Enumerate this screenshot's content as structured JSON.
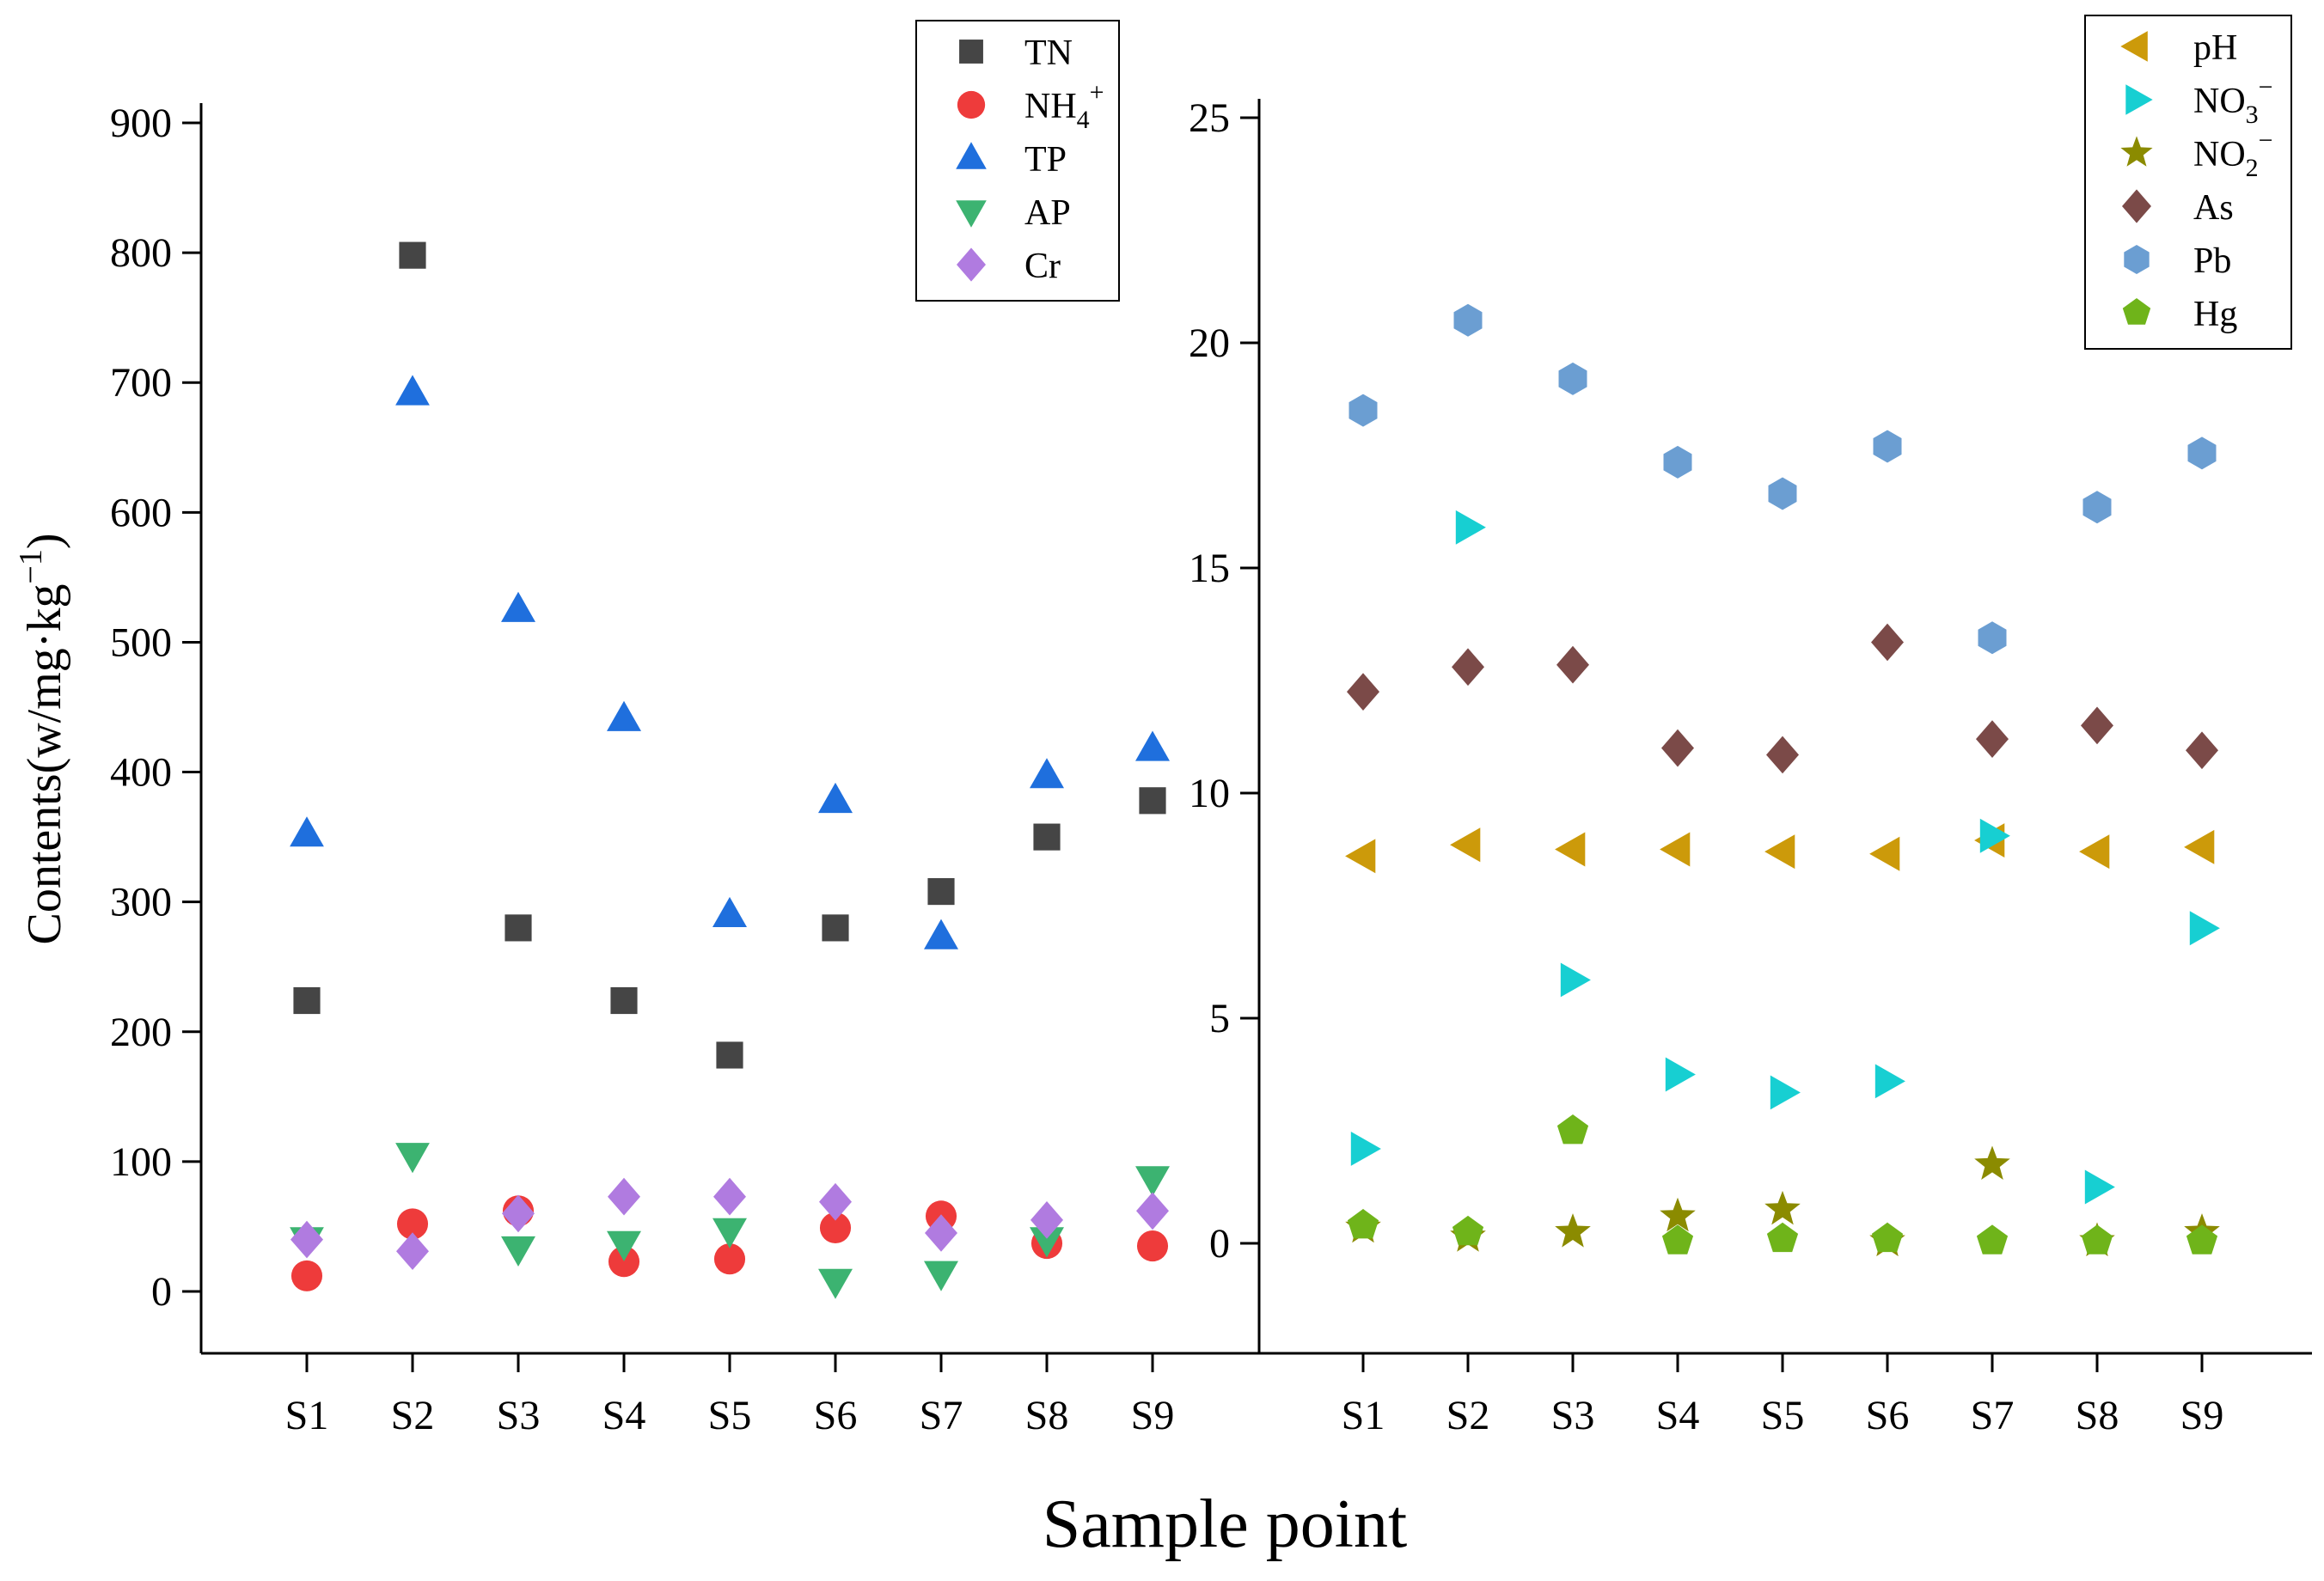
{
  "chart_data": [
    {
      "type": "scatter",
      "title": "",
      "xlabel": "Sample point",
      "ylabel": "Contents(w/mg·kg⁻¹)",
      "ylabel_main": "Contents(w/mg·kg",
      "ylabel_sup": "−1",
      "ylabel_end": ")",
      "categories": [
        "S1",
        "S2",
        "S3",
        "S4",
        "S5",
        "S6",
        "S7",
        "S8",
        "S9"
      ],
      "ylim": [
        -50,
        900
      ],
      "yticks": [
        0,
        100,
        200,
        300,
        400,
        500,
        600,
        700,
        800,
        900
      ],
      "legend_position": "top-right",
      "series": [
        {
          "name": "TN",
          "name_main": "TN",
          "sub": "",
          "sup": "",
          "marker": "square",
          "color": "#454545",
          "values": [
            224,
            798,
            280,
            224,
            182,
            280,
            308,
            350,
            378
          ]
        },
        {
          "name": "NH4+",
          "name_main": "NH",
          "sub": "4",
          "sup": "+",
          "marker": "circle",
          "color": "#ee3b3b",
          "values": [
            12,
            52,
            62,
            23,
            25,
            49,
            58,
            37,
            35
          ]
        },
        {
          "name": "TP",
          "name_main": "TP",
          "sub": "",
          "sup": "",
          "marker": "triangle-up",
          "color": "#1f6fdd",
          "values": [
            352,
            692,
            525,
            441,
            290,
            378,
            273,
            397,
            418
          ]
        },
        {
          "name": "AP",
          "name_main": "AP",
          "sub": "",
          "sup": "",
          "marker": "triangle-down",
          "color": "#3cb371",
          "values": [
            40,
            105,
            33,
            37,
            47,
            8,
            14,
            40,
            87
          ]
        },
        {
          "name": "Cr",
          "name_main": "Cr",
          "sub": "",
          "sup": "",
          "marker": "diamond",
          "color": "#b07be0",
          "values": [
            40,
            31,
            60,
            73,
            73,
            69,
            45,
            55,
            62
          ]
        }
      ]
    },
    {
      "type": "scatter",
      "title": "",
      "xlabel": "Sample point",
      "ylabel": "",
      "categories": [
        "S1",
        "S2",
        "S3",
        "S4",
        "S5",
        "S6",
        "S7",
        "S8",
        "S9"
      ],
      "ylim": [
        -2.5,
        25
      ],
      "yticks": [
        0,
        5,
        10,
        15,
        20,
        25
      ],
      "legend_position": "top-right",
      "series": [
        {
          "name": "pH",
          "name_main": "pH",
          "sub": "",
          "sup": "",
          "marker": "triangle-left",
          "color": "#cc9a0a",
          "values": [
            8.6,
            8.85,
            8.75,
            8.75,
            8.7,
            8.65,
            8.95,
            8.7,
            8.8
          ]
        },
        {
          "name": "NO3−",
          "name_main": "NO",
          "sub": "3",
          "sup": "−",
          "marker": "triangle-right",
          "color": "#17cfd2",
          "values": [
            2.1,
            15.9,
            5.85,
            3.75,
            3.35,
            3.6,
            9.05,
            1.25,
            7.0
          ]
        },
        {
          "name": "NO2−",
          "name_main": "NO",
          "sub": "2",
          "sup": "−",
          "marker": "star",
          "color": "#8b8b00",
          "values": [
            0.35,
            0.15,
            0.25,
            0.6,
            0.75,
            0.05,
            1.75,
            0.05,
            0.25
          ]
        },
        {
          "name": "As",
          "name_main": "As",
          "sub": "",
          "sup": "",
          "marker": "diamond",
          "color": "#7b4a48",
          "values": [
            12.25,
            12.8,
            12.85,
            11.0,
            10.85,
            13.35,
            11.2,
            11.5,
            10.95
          ]
        },
        {
          "name": "Pb",
          "name_main": "Pb",
          "sub": "",
          "sup": "",
          "marker": "hexagon",
          "color": "#6b9ed2",
          "values": [
            18.5,
            20.5,
            19.2,
            17.35,
            16.65,
            17.7,
            13.45,
            16.35,
            17.55
          ]
        },
        {
          "name": "Hg",
          "name_main": "Hg",
          "sub": "",
          "sup": "",
          "marker": "pentagon",
          "color": "#6fb41a",
          "values": [
            0.4,
            0.25,
            2.5,
            0.05,
            0.1,
            0.1,
            0.05,
            0.05,
            0.05
          ]
        }
      ]
    }
  ],
  "figure": {
    "xlabel": "Sample point"
  }
}
